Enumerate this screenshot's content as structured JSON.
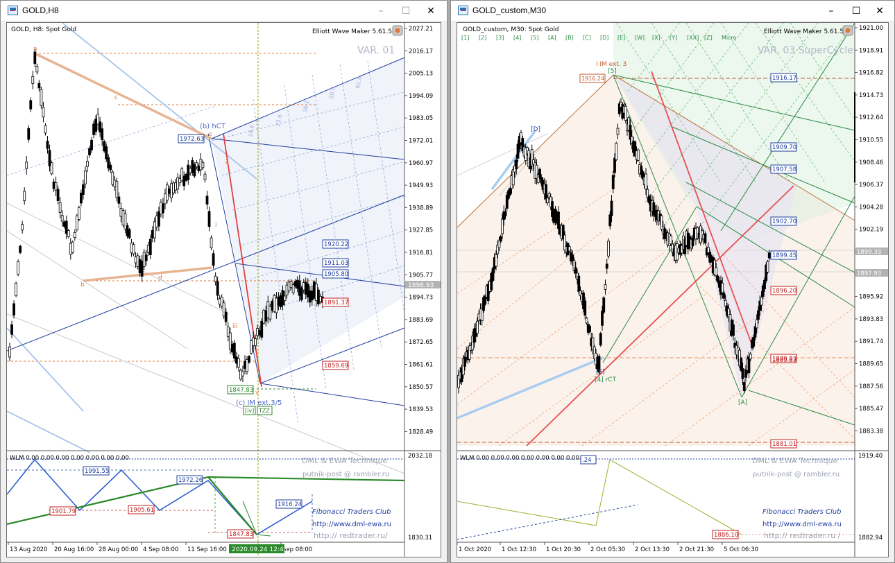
{
  "left_window": {
    "title": "GOLD,H8",
    "chart_label": "GOLD, H8:  Spot Gold",
    "plugin": "Elliott Wave Maker 5.61.5",
    "variant": "VAR. 01",
    "price_axis": [
      "2027.21",
      "2016.17",
      "2005.13",
      "1994.09",
      "1983.05",
      "1972.01",
      "1960.97",
      "1949.93",
      "1938.89",
      "1927.85",
      "1916.81",
      "1905.77",
      "1894.73",
      "1883.69",
      "1872.65",
      "1861.61",
      "1850.57",
      "1839.53",
      "1828.49"
    ],
    "current_price_tag": "1898.93",
    "level_tags": [
      {
        "text": "1972.63",
        "color": "#1f3f9f"
      },
      {
        "text": "1920.22",
        "color": "#1f3f9f"
      },
      {
        "text": "1911.03",
        "color": "#1f3f9f"
      },
      {
        "text": "1905.80",
        "color": "#1f3f9f"
      },
      {
        "text": "1891.37",
        "color": "#c02020"
      },
      {
        "text": "1859.69",
        "color": "#c02020"
      },
      {
        "text": "1847.83",
        "color": "#2a8a2a"
      }
    ],
    "wave_labels": {
      "a": "a",
      "b": "b",
      "c": "c",
      "d": "d",
      "e": "e",
      "b_hct": "(b) hCT",
      "c_im": "(c) IM ext.3/5",
      "iv": "[iv]",
      "tzz": "TZZ",
      "i": "i",
      "ii": "ii",
      "iii": "iii",
      "v": "v"
    },
    "fib_labels": [
      "50.0",
      "61.8",
      "38.2",
      "23.6",
      "14.6"
    ],
    "osc": {
      "header": "WLM 0.00 0.00 0.00 0.00 0.00 0.00 0.00",
      "axis_top": "2032.18",
      "axis_bottom": "1830.31",
      "technique": "DML & EWA Technique",
      "email": "putnik-post @ rambler.ru",
      "club": "Fibonacci   Traders   Club",
      "site1": "http://www.dml-ewa.ru",
      "site2": "http:// redtrader.ru/",
      "tags": [
        {
          "text": "1991.55",
          "color": "#1f3f9f"
        },
        {
          "text": "1972.26",
          "color": "#1f3f9f"
        },
        {
          "text": "1901.79",
          "color": "#c02020"
        },
        {
          "text": "1905.61",
          "color": "#c02020"
        },
        {
          "text": "1916.24",
          "color": "#1f3f9f"
        },
        {
          "text": "1847.83",
          "color": "#c02020"
        }
      ]
    },
    "time_axis": [
      "13 Aug 2020",
      "20 Aug 16:00",
      "28 Aug 00:00",
      "4 Sep 08:00",
      "11 Sep 16:00",
      "Sep 08:00"
    ],
    "cursor_time": "2020.09.24 12:45"
  },
  "right_window": {
    "title": "GOLD_custom,M30",
    "chart_label": "GOLD_custom, M30:  Spot Gold",
    "plugin": "Elliott Wave Maker 5.61.5",
    "variant": "VAR. 03 SuperCycle",
    "degree_buttons": [
      "[1]",
      "[2]",
      "[3]",
      "[4]",
      "[5]",
      "[A]",
      "[B]",
      "[C]",
      "[D]",
      "[E]",
      "[W]",
      "[X]",
      "[Y]",
      "[XX]",
      "[Z]",
      "Micro"
    ],
    "price_axis": [
      "1921.00",
      "1918.91",
      "1916.82",
      "1914.73",
      "1912.64",
      "1910.55",
      "1908.46",
      "1906.37",
      "1904.28",
      "1902.19",
      "1900.10",
      "1898.01",
      "1895.92",
      "1893.83",
      "1891.74",
      "1889.65",
      "1887.56",
      "1885.47",
      "1883.38"
    ],
    "current_price_tags": [
      "1899.33",
      "1897.93"
    ],
    "level_tags": [
      {
        "text": "1916.17",
        "color": "#1f3f9f"
      },
      {
        "text": "1909.70",
        "color": "#1f3f9f"
      },
      {
        "text": "1907.58",
        "color": "#1f3f9f"
      },
      {
        "text": "1902.70",
        "color": "#1f3f9f"
      },
      {
        "text": "1899.45",
        "color": "#1f3f9f"
      },
      {
        "text": "1896.20",
        "color": "#c02020"
      },
      {
        "text": "1889.83",
        "color": "#c02020"
      },
      {
        "text": "1881.01",
        "color": "#c02020"
      }
    ],
    "top_price_tag": "1916.24",
    "wave_labels": {
      "d": "[D]",
      "five": "[5]",
      "i_im": "i IM ext. 3",
      "e": "[E]",
      "four_rct": "[4] rCT",
      "a": "[A]"
    },
    "osc": {
      "header": "WLM 0.00 0.00 0.00 0.00 0.00 0.00 0.00",
      "tag_24": ".24",
      "axis_top": "1919.40",
      "axis_bottom": "1882.94",
      "technique": "DML & EWA Technique",
      "email": "putnik-post @ rambler.ru",
      "club": "Fibonacci   Traders   Club",
      "site1": "http://www.dml-ewa.ru",
      "site2": "http:// redtrader.ru /",
      "tag": "1886.10"
    },
    "time_axis": [
      "1 Oct 2020",
      "1 Oct 12:30",
      "1 Oct 20:30",
      "2 Oct 05:30",
      "2 Oct 13:30",
      "2 Oct 21:30",
      "5 Oct 06:30"
    ]
  }
}
